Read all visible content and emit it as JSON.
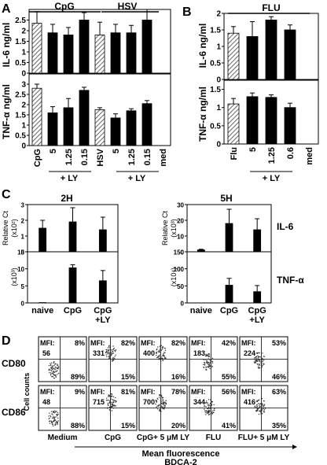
{
  "panels": {
    "A": {
      "letter": "A",
      "groups": [
        "CpG",
        "HSV"
      ],
      "top": {
        "ylabel": "IL-6 ng/ml",
        "ticks": [
          "0",
          "0.5",
          "1",
          "1.5",
          "2",
          "2.5"
        ]
      },
      "bottom": {
        "ylabel": "TNF-α ng/ml",
        "ticks": [
          "0",
          "0.5",
          "1",
          "1.5",
          "2",
          "2.5",
          "3"
        ]
      },
      "xticks": [
        "CpG",
        "5",
        "1.25",
        "0.15",
        "HSV",
        "5",
        "1.25",
        "0.15",
        "med"
      ],
      "ly_labels": [
        "+ LY",
        "+ LY"
      ]
    },
    "B": {
      "letter": "B",
      "groups": [
        "FLU"
      ],
      "top": {
        "ylabel": "IL-6 ng/ml",
        "ticks": [
          "0",
          "0.5",
          "1",
          "1.5",
          "2"
        ]
      },
      "bottom": {
        "ylabel": "TNF-α ng/ml",
        "ticks": [
          "0",
          "0.5",
          "1",
          "1.5"
        ]
      },
      "xticks": [
        "Flu",
        "5",
        "1.25",
        "0.6",
        "med"
      ],
      "ly_label": "+ LY"
    },
    "C": {
      "letter": "C",
      "titles": [
        "2H",
        "5H"
      ],
      "ylabel": "Relative Ct",
      "exp_il6": [
        "(x10²)",
        "(x10³)"
      ],
      "exp_tnf": [
        "(x10³)",
        "(x10⁴)"
      ],
      "il6_ticks_2h": [
        "0",
        "1",
        "2",
        "3"
      ],
      "tnf_ticks_2h": [
        "0",
        "5",
        "10",
        "15"
      ],
      "il6_ticks_5h": [
        "0",
        "10",
        "20",
        "30"
      ],
      "tnf_ticks_5h": [
        "0",
        "50",
        "100",
        "150"
      ],
      "row_labels": [
        "IL-6",
        "TNF-α"
      ],
      "xticks": [
        "naive",
        "CpG",
        "CpG",
        "+LY"
      ]
    },
    "D": {
      "letter": "D",
      "rows": [
        "CD80",
        "CD86"
      ],
      "ylabel": "Cell counts",
      "columns": [
        "Medium",
        "CpG",
        "CpG+ 5 μM LY",
        "FLU",
        "FLU+ 5 μM LY"
      ],
      "xlabel_line1": "Mean fluorescence",
      "xlabel_line2": "BDCA-2",
      "mfi_label": "MFI:",
      "cd80": [
        {
          "mfi": "56",
          "top": "8%",
          "bottom": "89%"
        },
        {
          "mfi": "331",
          "top": "82%",
          "bottom": "15%"
        },
        {
          "mfi": "400",
          "top": "82%",
          "bottom": "16%"
        },
        {
          "mfi": "183",
          "top": "42%",
          "bottom": "55%"
        },
        {
          "mfi": "224",
          "top": "53%",
          "bottom": "46%"
        }
      ],
      "cd86": [
        {
          "mfi": "48",
          "top": "9%",
          "bottom": "88%"
        },
        {
          "mfi": "715",
          "top": "81%",
          "bottom": "15%"
        },
        {
          "mfi": "700",
          "top": "78%",
          "bottom": "20%"
        },
        {
          "mfi": "344",
          "top": "56%",
          "bottom": "41%"
        },
        {
          "mfi": "416",
          "top": "63%",
          "bottom": "35%"
        }
      ]
    }
  },
  "chart_data": [
    {
      "panel": "A-top",
      "type": "bar",
      "ylabel": "IL-6 ng/ml",
      "ylim": [
        0,
        3
      ],
      "categories": [
        "CpG",
        "5",
        "1.25",
        "0.15",
        "HSV",
        "5",
        "1.25",
        "0.15",
        "med"
      ],
      "values": [
        2.35,
        1.9,
        1.8,
        2.5,
        1.8,
        1.9,
        1.9,
        2.5,
        0
      ],
      "errors": [
        0.55,
        0.4,
        0.35,
        0.35,
        0.6,
        0.4,
        0.35,
        0.5,
        0
      ],
      "hatched": [
        0,
        4
      ]
    },
    {
      "panel": "A-bottom",
      "type": "bar",
      "ylabel": "TNF-α ng/ml",
      "ylim": [
        0,
        3.5
      ],
      "categories": [
        "CpG",
        "5",
        "1.25",
        "0.15",
        "HSV",
        "5",
        "1.25",
        "0.15",
        "med"
      ],
      "values": [
        2.8,
        1.6,
        1.85,
        2.7,
        1.75,
        1.35,
        1.7,
        2.05,
        0
      ],
      "errors": [
        0.2,
        0.3,
        0.45,
        0.15,
        0.1,
        0.2,
        0.1,
        0.15,
        0
      ],
      "hatched": [
        0,
        4
      ]
    },
    {
      "panel": "B-top",
      "type": "bar",
      "ylabel": "IL-6 ng/ml",
      "ylim": [
        0,
        2
      ],
      "categories": [
        "Flu",
        "5",
        "1.25",
        "0.6",
        "med"
      ],
      "values": [
        1.4,
        1.3,
        1.8,
        1.5,
        0
      ],
      "errors": [
        0.2,
        0.45,
        0.1,
        0.15,
        0
      ],
      "hatched": [
        0
      ]
    },
    {
      "panel": "B-bottom",
      "type": "bar",
      "ylabel": "TNF-α ng/ml",
      "ylim": [
        0,
        1.75
      ],
      "categories": [
        "Flu",
        "5",
        "1.25",
        "0.6",
        "med"
      ],
      "values": [
        1.1,
        1.3,
        1.28,
        1.0,
        0
      ],
      "errors": [
        0.15,
        0.1,
        0.07,
        0.12,
        0
      ],
      "hatched": [
        0
      ]
    },
    {
      "panel": "C-2H-IL6",
      "type": "bar",
      "ylim": [
        0,
        3
      ],
      "categories": [
        "naive",
        "CpG",
        "CpG+LY"
      ],
      "values": [
        1.5,
        1.9,
        1.4
      ],
      "errors": [
        0.5,
        0.9,
        0.8
      ]
    },
    {
      "panel": "C-2H-TNF",
      "type": "bar",
      "ylim": [
        0,
        15
      ],
      "categories": [
        "naive",
        "CpG",
        "CpG+LY"
      ],
      "values": [
        0.1,
        10.3,
        6.5
      ],
      "errors": [
        0,
        0.9,
        3.0
      ]
    },
    {
      "panel": "C-5H-IL6",
      "type": "bar",
      "ylim": [
        0,
        30
      ],
      "categories": [
        "naive",
        "CpG",
        "CpG+LY"
      ],
      "values": [
        1.2,
        18,
        14
      ],
      "errors": [
        0.4,
        9,
        7
      ]
    },
    {
      "panel": "C-5H-TNF",
      "type": "bar",
      "ylim": [
        0,
        150
      ],
      "categories": [
        "naive",
        "CpG",
        "CpG+LY"
      ],
      "values": [
        0,
        52,
        33
      ],
      "errors": [
        0,
        20,
        18
      ]
    }
  ]
}
